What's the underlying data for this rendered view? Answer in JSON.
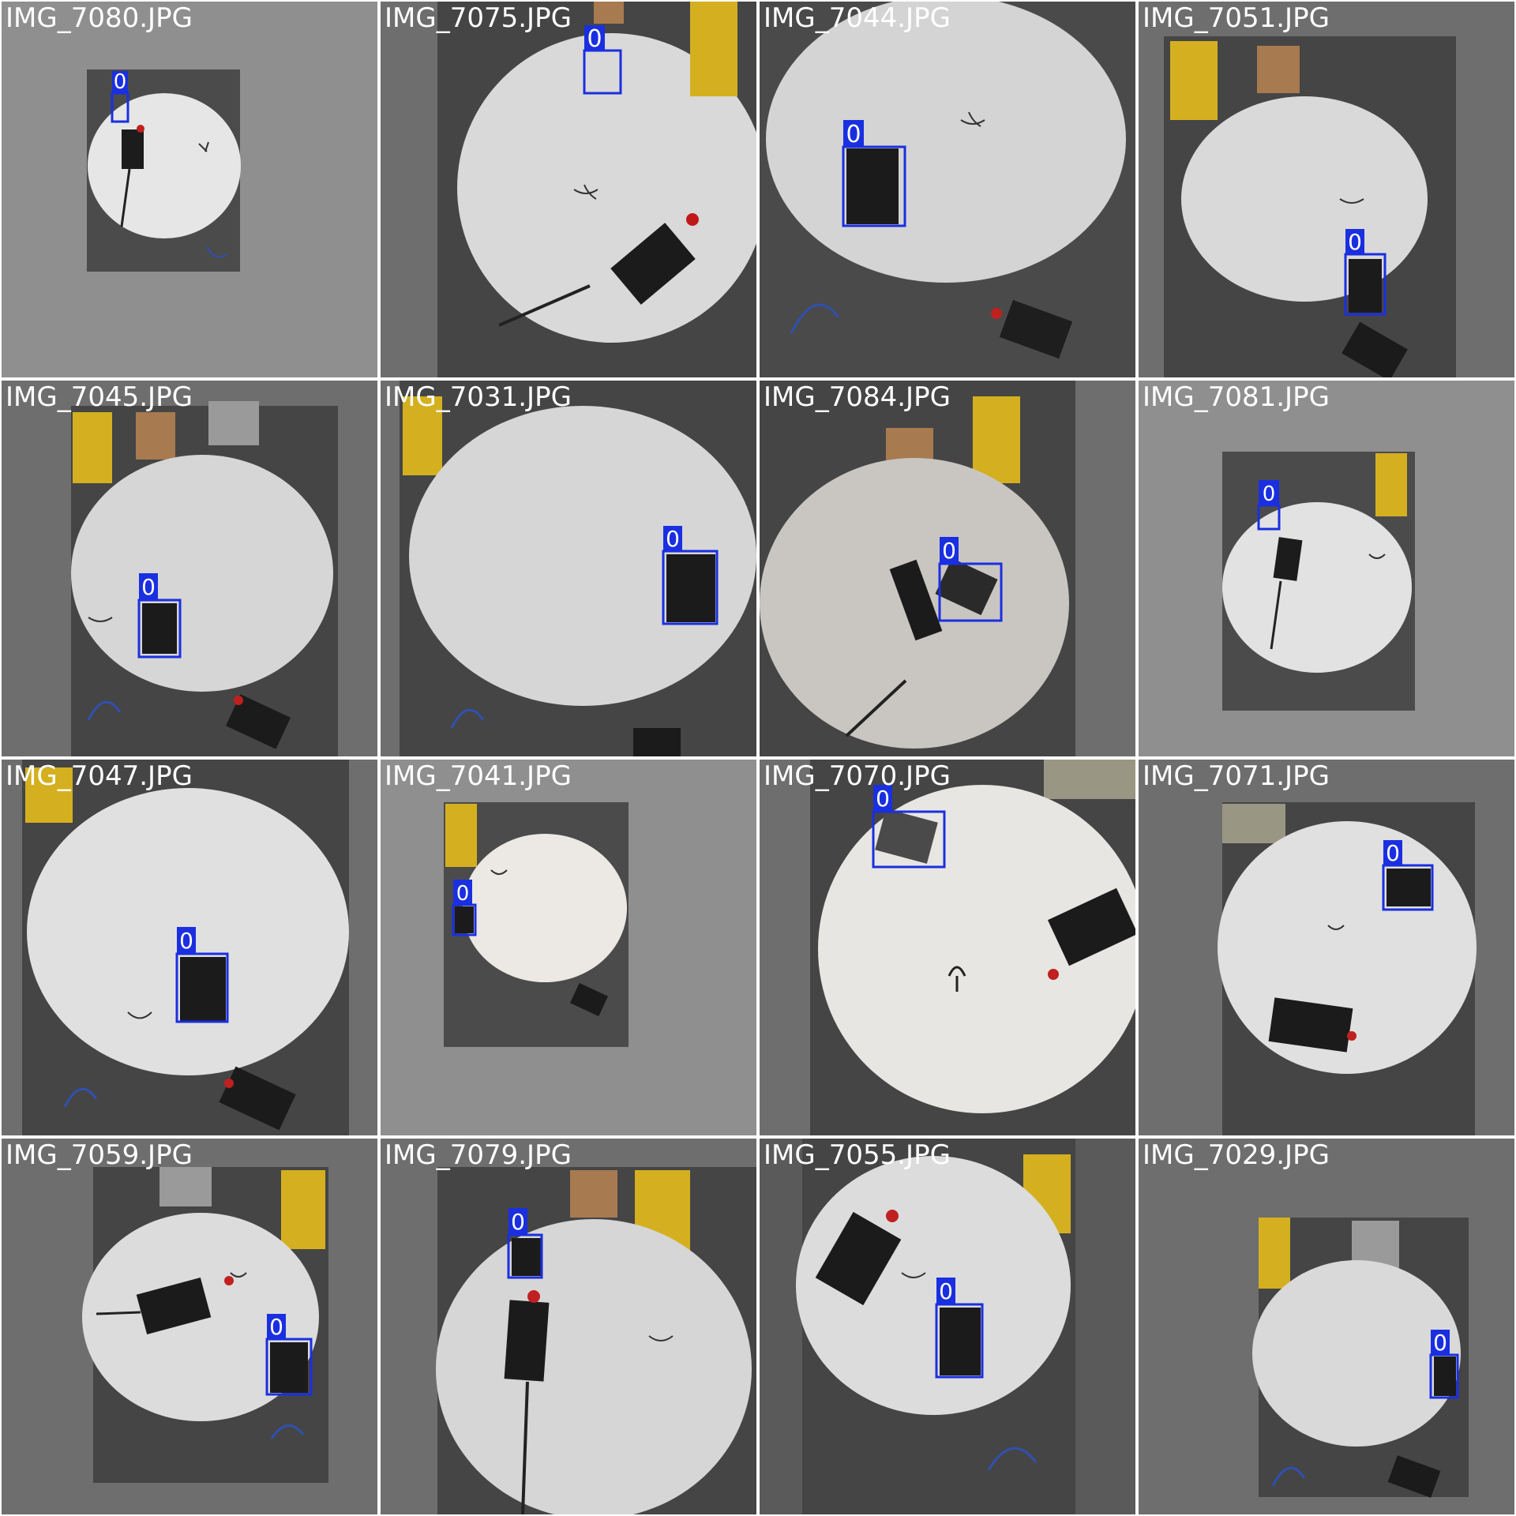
{
  "grid": {
    "tiles": [
      {
        "filename": "IMG_7080.JPG",
        "labels": [
          "0"
        ]
      },
      {
        "filename": "IMG_7075.JPG",
        "labels": [
          "0"
        ]
      },
      {
        "filename": "IMG_7044.JPG",
        "labels": [
          "0"
        ]
      },
      {
        "filename": "IMG_7051.JPG",
        "labels": [
          "0"
        ]
      },
      {
        "filename": "IMG_7045.JPG",
        "labels": [
          "0"
        ]
      },
      {
        "filename": "IMG_7031.JPG",
        "labels": [
          "0"
        ]
      },
      {
        "filename": "IMG_7084.JPG",
        "labels": [
          "0"
        ]
      },
      {
        "filename": "IMG_7081.JPG",
        "labels": [
          "0"
        ]
      },
      {
        "filename": "IMG_7047.JPG",
        "labels": [
          "0"
        ]
      },
      {
        "filename": "IMG_7041.JPG",
        "labels": [
          "0"
        ]
      },
      {
        "filename": "IMG_7070.JPG",
        "labels": [
          "0"
        ]
      },
      {
        "filename": "IMG_7071.JPG",
        "labels": [
          "0"
        ]
      },
      {
        "filename": "IMG_7059.JPG",
        "labels": [
          "0"
        ]
      },
      {
        "filename": "IMG_7079.JPG",
        "labels": [
          "0"
        ]
      },
      {
        "filename": "IMG_7055.JPG",
        "labels": [
          "0"
        ]
      },
      {
        "filename": "IMG_7029.JPG",
        "labels": [
          "0"
        ]
      }
    ]
  },
  "colors": {
    "box": "#1a2fe0",
    "label_bg": "#1a2fe0",
    "label_text": "#ffffff",
    "table": "#d8d8d8",
    "floor": "#4a4a4a",
    "tile_bg": "#8a8a8a"
  }
}
